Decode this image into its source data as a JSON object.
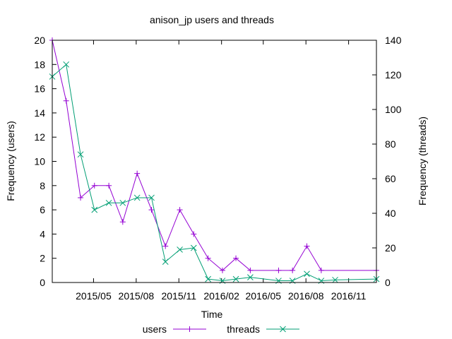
{
  "chart_data": {
    "type": "line",
    "title": "anison_jp users and threads",
    "xlabel": "Time",
    "ylabel": "Frequency (users)",
    "y2label": "Frequency (threads)",
    "xlim": [
      "2015-02-01",
      "2016-12-31"
    ],
    "ylim": [
      0,
      20
    ],
    "y2lim": [
      0,
      140
    ],
    "xticks": [
      {
        "label": "2015/05",
        "date": "2015-05-01"
      },
      {
        "label": "2015/08",
        "date": "2015-08-01"
      },
      {
        "label": "2015/11",
        "date": "2015-11-01"
      },
      {
        "label": "2016/02",
        "date": "2016-02-01"
      },
      {
        "label": "2016/05",
        "date": "2016-05-01"
      },
      {
        "label": "2016/08",
        "date": "2016-08-01"
      },
      {
        "label": "2016/11",
        "date": "2016-11-01"
      }
    ],
    "yticks": [
      0,
      2,
      4,
      6,
      8,
      10,
      12,
      14,
      16,
      18,
      20
    ],
    "y2ticks": [
      0,
      20,
      40,
      60,
      80,
      100,
      120,
      140
    ],
    "legend_position": "bottom",
    "series": [
      {
        "name": "users",
        "axis": "y1",
        "color": "#9400d3",
        "marker": "plus",
        "points": [
          [
            "2015-02-01",
            20
          ],
          [
            "2015-03-03",
            15
          ],
          [
            "2015-04-03",
            7
          ],
          [
            "2015-05-03",
            8
          ],
          [
            "2015-06-03",
            8
          ],
          [
            "2015-07-03",
            5
          ],
          [
            "2015-08-03",
            9
          ],
          [
            "2015-09-03",
            6
          ],
          [
            "2015-10-03",
            3
          ],
          [
            "2015-11-03",
            6
          ],
          [
            "2015-12-03",
            4
          ],
          [
            "2016-01-03",
            2
          ],
          [
            "2016-02-03",
            1
          ],
          [
            "2016-03-03",
            2
          ],
          [
            "2016-04-03",
            1
          ],
          [
            "2016-06-03",
            1
          ],
          [
            "2016-07-03",
            1
          ],
          [
            "2016-08-03",
            3
          ],
          [
            "2016-09-03",
            1
          ],
          [
            "2016-12-31",
            1
          ]
        ]
      },
      {
        "name": "threads",
        "axis": "y2",
        "color": "#009e73",
        "marker": "cross",
        "points": [
          [
            "2015-02-01",
            119
          ],
          [
            "2015-03-03",
            126
          ],
          [
            "2015-04-03",
            74
          ],
          [
            "2015-05-03",
            42
          ],
          [
            "2015-06-03",
            46
          ],
          [
            "2015-07-03",
            46
          ],
          [
            "2015-08-03",
            49
          ],
          [
            "2015-09-03",
            49
          ],
          [
            "2015-10-03",
            12
          ],
          [
            "2015-11-03",
            19
          ],
          [
            "2015-12-03",
            20
          ],
          [
            "2016-01-03",
            2
          ],
          [
            "2016-02-03",
            1
          ],
          [
            "2016-03-03",
            2
          ],
          [
            "2016-04-03",
            3
          ],
          [
            "2016-06-03",
            1
          ],
          [
            "2016-07-03",
            1
          ],
          [
            "2016-08-03",
            5
          ],
          [
            "2016-09-03",
            1
          ],
          [
            "2016-10-03",
            1.5
          ],
          [
            "2016-12-31",
            2
          ]
        ]
      }
    ]
  }
}
